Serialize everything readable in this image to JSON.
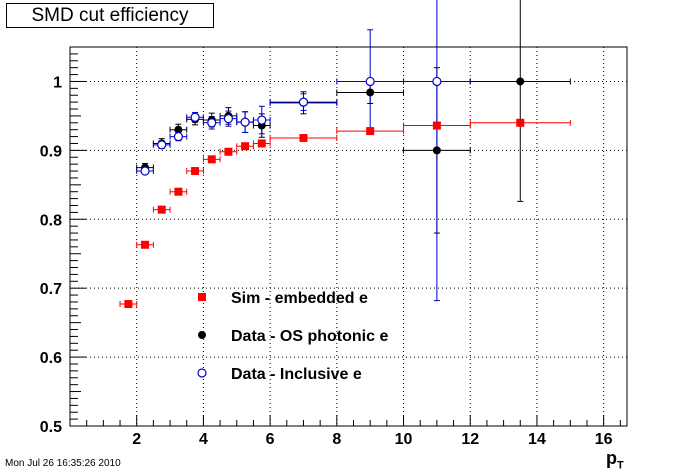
{
  "chart_data": {
    "type": "scatter",
    "title": "SMD cut efficiency",
    "xlabel": "p",
    "xlabel_subscript": "T",
    "ylabel": "",
    "xlim": [
      0,
      16.7
    ],
    "ylim": [
      0.5,
      1.05
    ],
    "xticks": [
      2,
      4,
      6,
      8,
      10,
      12,
      14,
      16
    ],
    "yticks": [
      0.5,
      0.6,
      0.7,
      0.8,
      0.9,
      1.0
    ],
    "ytick_labels": [
      "0.5",
      "0.6",
      "0.7",
      "0.8",
      "0.9",
      "1"
    ],
    "grid": true,
    "legend_position": "bottom-left-inside",
    "series": [
      {
        "name": "Sim - embedded e",
        "color": "#ff0000",
        "marker": "square",
        "points": [
          {
            "x": 1.75,
            "y": 0.677,
            "xerr": 0.25,
            "yerr": 0.002
          },
          {
            "x": 2.25,
            "y": 0.763,
            "xerr": 0.25,
            "yerr": 0.002
          },
          {
            "x": 2.75,
            "y": 0.814,
            "xerr": 0.25,
            "yerr": 0.002
          },
          {
            "x": 3.25,
            "y": 0.84,
            "xerr": 0.25,
            "yerr": 0.002
          },
          {
            "x": 3.75,
            "y": 0.87,
            "xerr": 0.25,
            "yerr": 0.002
          },
          {
            "x": 4.25,
            "y": 0.887,
            "xerr": 0.25,
            "yerr": 0.002
          },
          {
            "x": 4.75,
            "y": 0.898,
            "xerr": 0.25,
            "yerr": 0.002
          },
          {
            "x": 5.25,
            "y": 0.906,
            "xerr": 0.25,
            "yerr": 0.002
          },
          {
            "x": 5.75,
            "y": 0.91,
            "xerr": 0.25,
            "yerr": 0.002
          },
          {
            "x": 7.0,
            "y": 0.918,
            "xerr": 1.0,
            "yerr": 0.002
          },
          {
            "x": 9.0,
            "y": 0.928,
            "xerr": 1.0,
            "yerr": 0.002
          },
          {
            "x": 11.0,
            "y": 0.936,
            "xerr": 1.0,
            "yerr": 0.002
          },
          {
            "x": 13.5,
            "y": 0.94,
            "xerr": 1.5,
            "yerr": 0.002
          }
        ]
      },
      {
        "name": "Data - OS photonic e",
        "color": "#000000",
        "marker": "circle",
        "points": [
          {
            "x": 2.25,
            "y": 0.875,
            "xerr": 0.25,
            "yerr": 0.006
          },
          {
            "x": 2.75,
            "y": 0.91,
            "xerr": 0.25,
            "yerr": 0.007
          },
          {
            "x": 3.25,
            "y": 0.93,
            "xerr": 0.25,
            "yerr": 0.008
          },
          {
            "x": 3.75,
            "y": 0.945,
            "xerr": 0.25,
            "yerr": 0.008
          },
          {
            "x": 4.25,
            "y": 0.944,
            "xerr": 0.25,
            "yerr": 0.01
          },
          {
            "x": 4.75,
            "y": 0.95,
            "xerr": 0.25,
            "yerr": 0.012
          },
          {
            "x": 5.25,
            "y": 0.941,
            "xerr": 0.25,
            "yerr": 0.015
          },
          {
            "x": 5.75,
            "y": 0.936,
            "xerr": 0.25,
            "yerr": 0.017
          },
          {
            "x": 7.0,
            "y": 0.969,
            "xerr": 1.0,
            "yerr": 0.016
          },
          {
            "x": 9.0,
            "y": 0.984,
            "xerr": 1.0,
            "yerr": 0.016
          },
          {
            "x": 11.0,
            "y": 0.9,
            "xerr": 1.0,
            "yerr": 0.12
          },
          {
            "x": 13.5,
            "y": 1.0,
            "xerr": 1.5,
            "yerr": 0.174
          }
        ]
      },
      {
        "name": "Data - Inclusive e",
        "color": "#0000cc",
        "marker": "open-circle",
        "points": [
          {
            "x": 2.25,
            "y": 0.87,
            "xerr": 0.25,
            "yerr": 0.004
          },
          {
            "x": 2.75,
            "y": 0.908,
            "xerr": 0.25,
            "yerr": 0.005
          },
          {
            "x": 3.25,
            "y": 0.92,
            "xerr": 0.25,
            "yerr": 0.006
          },
          {
            "x": 3.75,
            "y": 0.948,
            "xerr": 0.25,
            "yerr": 0.007
          },
          {
            "x": 4.25,
            "y": 0.94,
            "xerr": 0.25,
            "yerr": 0.009
          },
          {
            "x": 4.75,
            "y": 0.946,
            "xerr": 0.25,
            "yerr": 0.011
          },
          {
            "x": 5.25,
            "y": 0.941,
            "xerr": 0.25,
            "yerr": 0.015
          },
          {
            "x": 5.75,
            "y": 0.944,
            "xerr": 0.25,
            "yerr": 0.02
          },
          {
            "x": 7.0,
            "y": 0.97,
            "xerr": 1.0,
            "yerr": 0.012
          },
          {
            "x": 9.0,
            "y": 1.0,
            "xerr": 1.0,
            "yerr": 0.075
          },
          {
            "x": 11.0,
            "y": 1.0,
            "xerr": 1.0,
            "yerr": 0.318
          }
        ]
      }
    ]
  },
  "timestamp": "Mon Jul 26 16:35:26 2010"
}
